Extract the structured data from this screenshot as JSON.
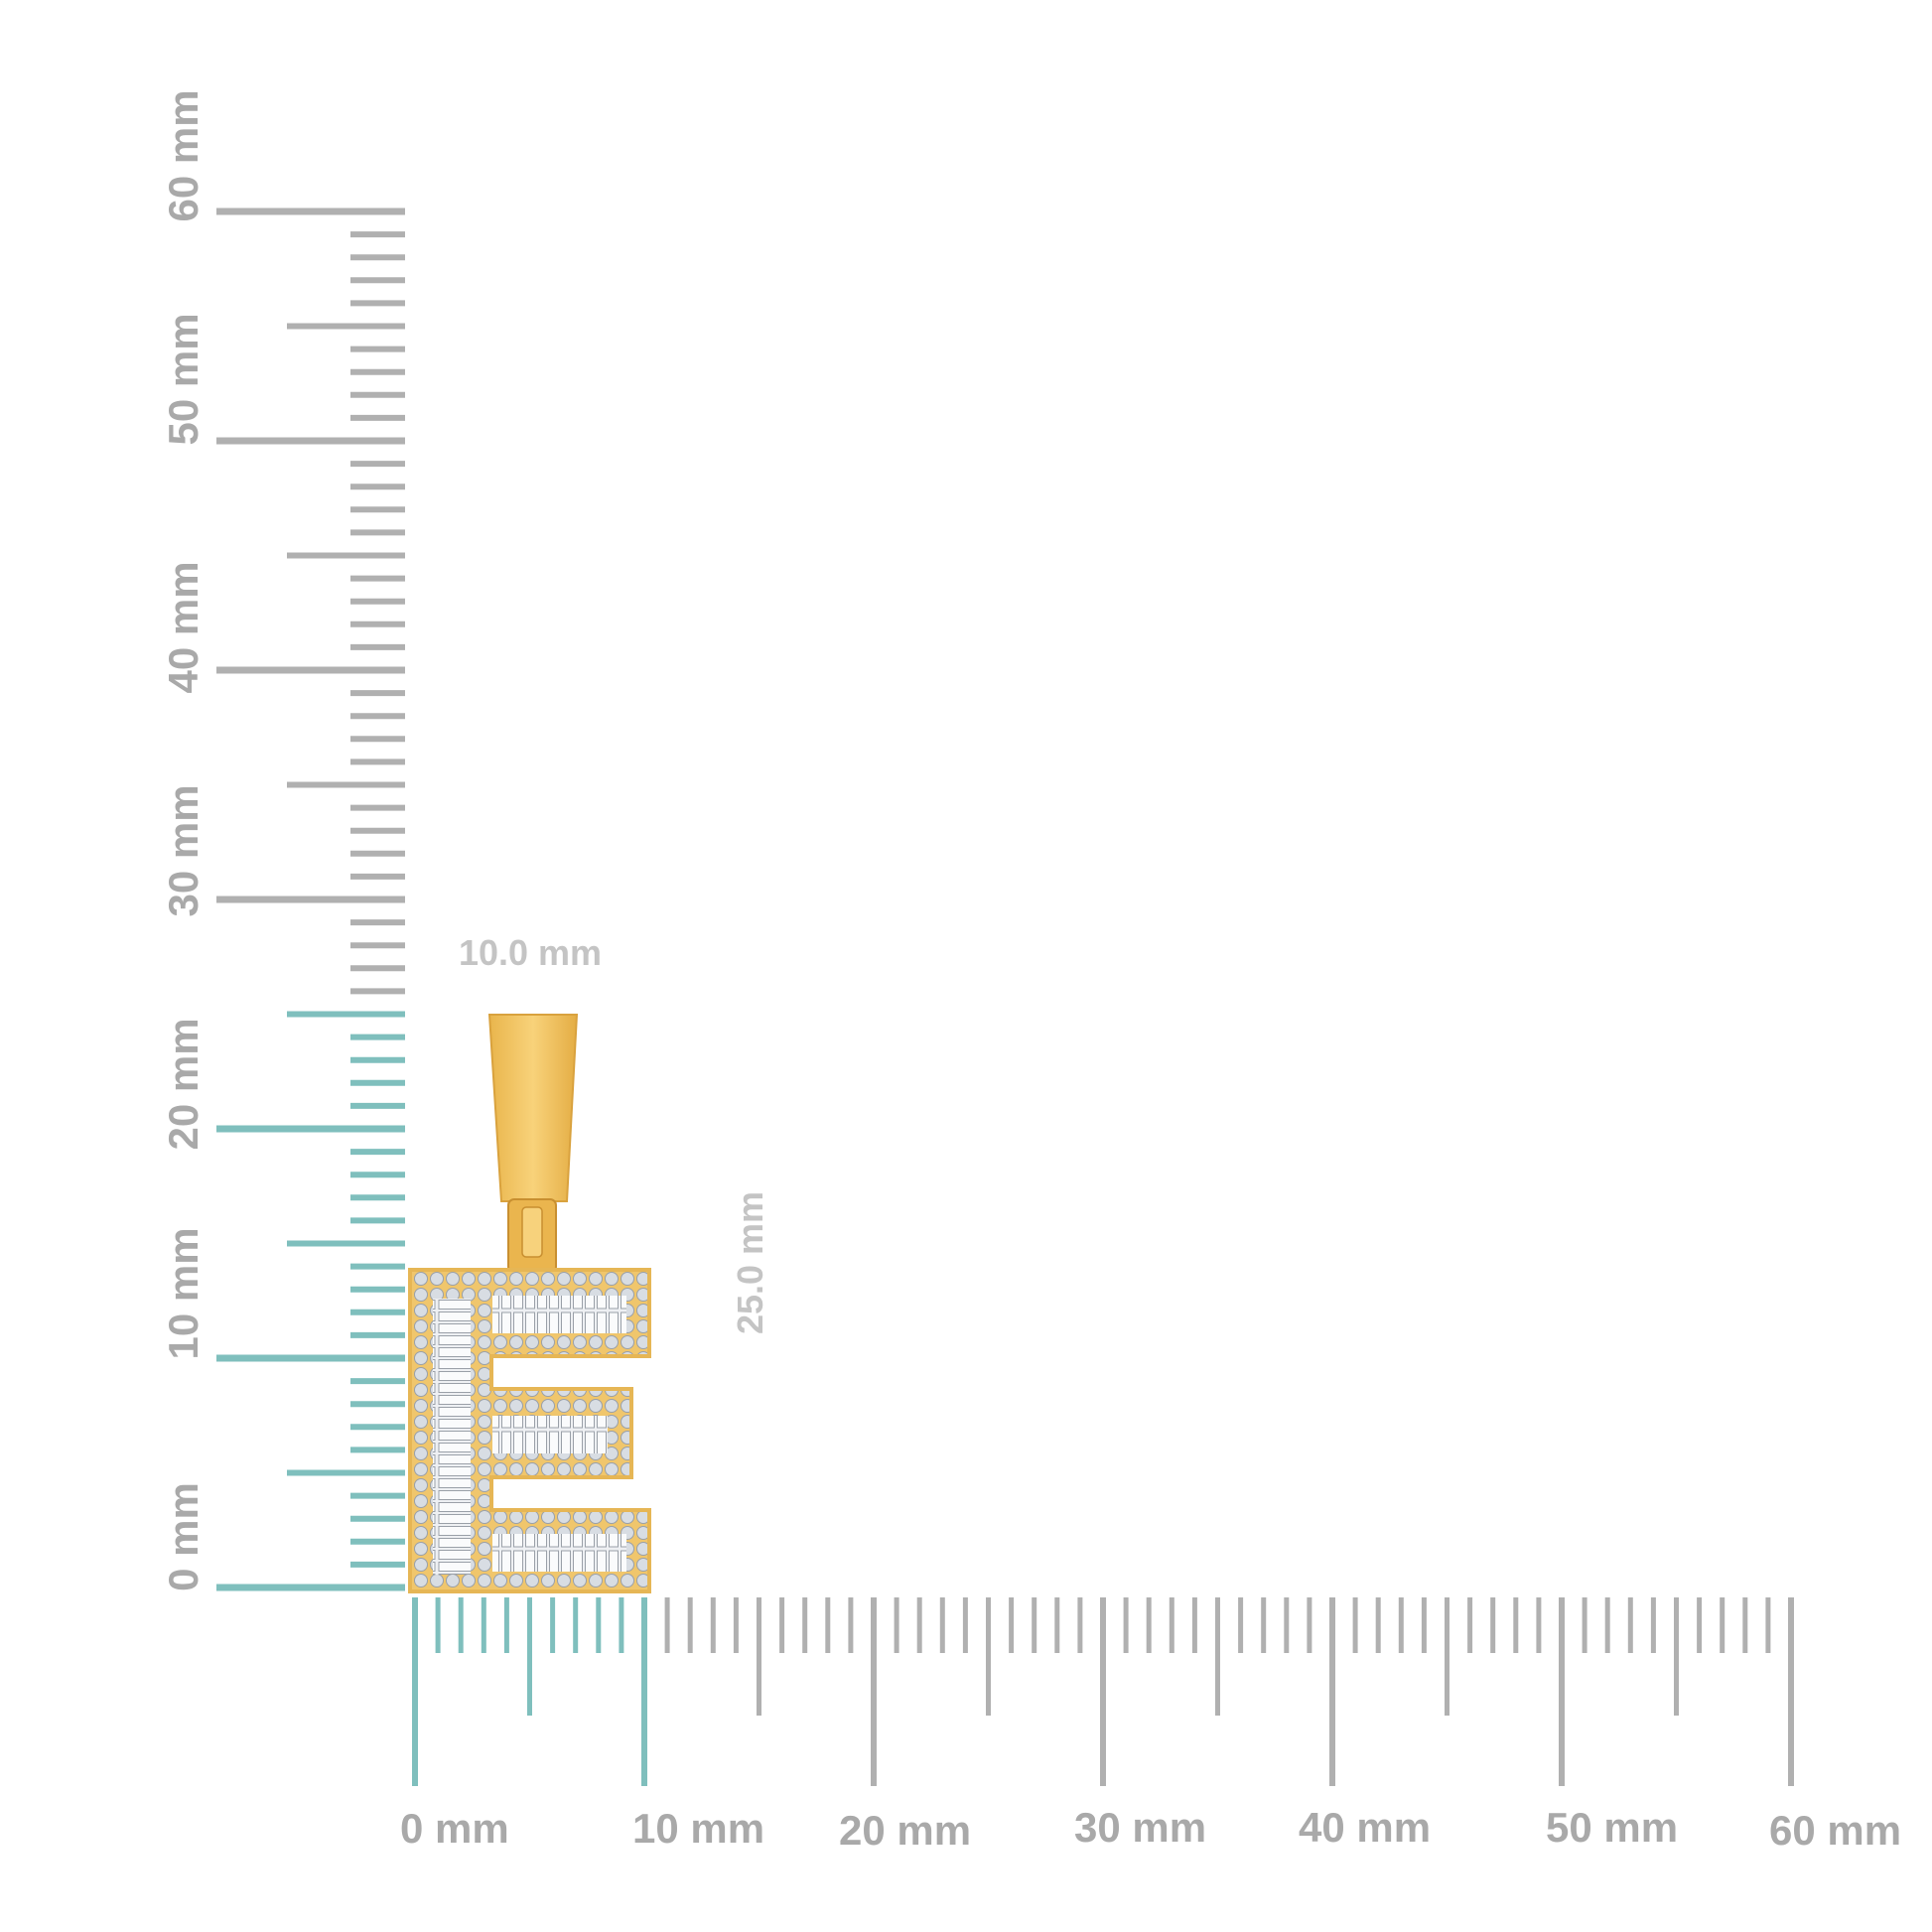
{
  "rulers": {
    "unit": "mm",
    "range": [
      0,
      60
    ],
    "major_step": 10,
    "mid_step": 5,
    "minor_step": 1,
    "colors": {
      "default": "#b0b0b0",
      "highlight": "#7fbfbd",
      "label": "#a9a9a9"
    },
    "horizontal": {
      "labels": [
        "0 mm",
        "10 mm",
        "20 mm",
        "30 mm",
        "40 mm",
        "50 mm",
        "60 mm"
      ],
      "highlight_to": 10
    },
    "vertical": {
      "labels": [
        "0 mm",
        "10 mm",
        "20 mm",
        "30 mm",
        "40 mm",
        "50 mm",
        "60 mm"
      ],
      "highlight_to": 25
    }
  },
  "product": {
    "letter": "E",
    "metal_color": "#f3c564",
    "width_label": "10.0 mm",
    "height_label": "25.0 mm"
  }
}
